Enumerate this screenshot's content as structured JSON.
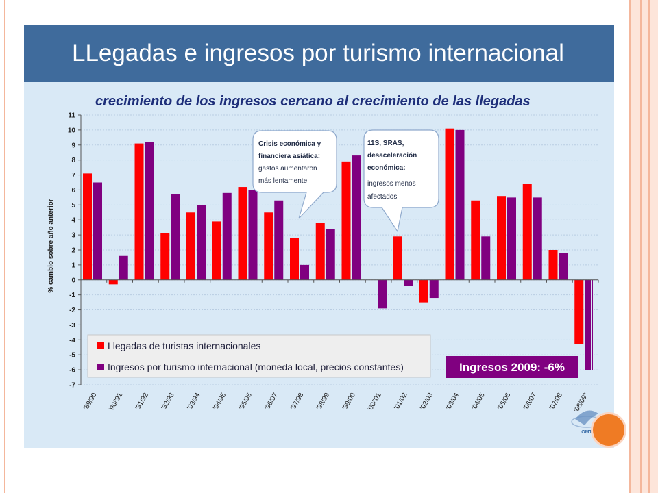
{
  "slide": {
    "title": "LLegadas e ingresos por turismo internacional"
  },
  "chart_data": {
    "type": "bar",
    "title": "crecimiento de los ingresos cercano al crecimiento de las llegadas",
    "ylabel": "% cambio sobre año anterior",
    "xlabel": "",
    "ylim": [
      -7,
      11
    ],
    "yticks": [
      11,
      10,
      9,
      8,
      7,
      6,
      5,
      4,
      3,
      2,
      1,
      0,
      -1,
      -2,
      -3,
      -4,
      -5,
      -6,
      -7
    ],
    "grid": true,
    "legend_position": "bottom-left",
    "categories": [
      "'89/90",
      "'90/'91",
      "'91/92",
      "'92/93",
      "'93/94",
      "'94/95",
      "'95/96",
      "'96/97",
      "'97/98",
      "'98/99",
      "'99/00",
      "'00/'01",
      "'01/02",
      "'02/03",
      "'03/04",
      "'04/05",
      "'05/06",
      "'06/07",
      "'07/08",
      "'08/09*"
    ],
    "series": [
      {
        "name": "Llegadas de turistas internacionales",
        "color": "#ff0000",
        "values": [
          7.1,
          -0.3,
          9.1,
          3.1,
          4.5,
          3.9,
          6.2,
          4.5,
          2.8,
          3.8,
          7.9,
          0,
          2.9,
          -1.5,
          10.1,
          5.3,
          5.6,
          6.4,
          2.0,
          -4.3
        ]
      },
      {
        "name": "Ingresos por turismo internacional (moneda local, precios constantes)",
        "color": "#800080",
        "values": [
          6.5,
          1.6,
          9.2,
          5.7,
          5.0,
          5.8,
          6.0,
          5.3,
          1.0,
          3.4,
          8.3,
          -1.9,
          -0.4,
          -1.2,
          10.0,
          2.9,
          5.5,
          5.5,
          1.8,
          -6.0
        ]
      }
    ],
    "annotations": [
      {
        "id": "asia",
        "lines": [
          "Crisis económica y",
          "financiera asiática:",
          "gastos aumentaron",
          "más lentamente"
        ],
        "bold_lines": 2
      },
      {
        "id": "sars",
        "lines": [
          "11S, SRAS,",
          "desaceleración",
          "económica:",
          "ingresos menos",
          "afectados"
        ],
        "bold_lines": 3
      }
    ],
    "badge": "Ingresos 2009: -6%"
  },
  "logo": {
    "label": "OMT"
  }
}
